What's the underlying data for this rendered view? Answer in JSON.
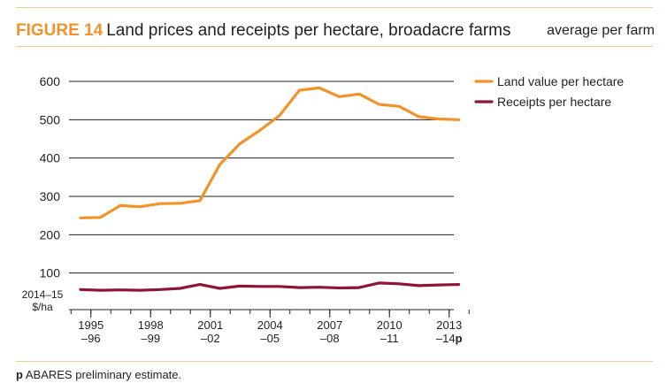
{
  "figure": {
    "label": "FIGURE 14",
    "title": "Land prices and receipts per hectare, broadacre farms",
    "subtitle": "average per farm"
  },
  "footnote": {
    "marker": "p",
    "text": "ABARES preliminary estimate."
  },
  "chart_data": {
    "type": "line",
    "title": "Land prices and receipts per hectare, broadacre farms",
    "subtitle": "average per farm",
    "ylabel_line1": "2014–15",
    "ylabel_line2": "$/ha",
    "ylim": [
      0,
      600
    ],
    "yticks": [
      100,
      200,
      300,
      400,
      500,
      600
    ],
    "grid": true,
    "legend_position": "top-right",
    "x": [
      "1994–95",
      "1995–96",
      "1996–97",
      "1997–98",
      "1998–99",
      "1999–00",
      "2000–01",
      "2001–02",
      "2002–03",
      "2003–04",
      "2004–05",
      "2005–06",
      "2006–07",
      "2007–08",
      "2008–09",
      "2009–10",
      "2010–11",
      "2011–12",
      "2012–13",
      "2013–14"
    ],
    "xtick_labels": [
      {
        "line1": "1995",
        "line2": "–96",
        "suffix": ""
      },
      {
        "line1": "1998",
        "line2": "–99",
        "suffix": ""
      },
      {
        "line1": "2001",
        "line2": "–02",
        "suffix": ""
      },
      {
        "line1": "2004",
        "line2": "–05",
        "suffix": ""
      },
      {
        "line1": "2007",
        "line2": "–08",
        "suffix": ""
      },
      {
        "line1": "2010",
        "line2": "–11",
        "suffix": ""
      },
      {
        "line1": "2013",
        "line2": "–14",
        "suffix": "p"
      }
    ],
    "xtick_positions": [
      1,
      4,
      7,
      10,
      13,
      16,
      19
    ],
    "series": [
      {
        "name": "Land value per hectare",
        "color": "#f0932b",
        "values": [
          244,
          245,
          276,
          273,
          281,
          282,
          289,
          383,
          437,
          472,
          511,
          577,
          583,
          560,
          567,
          540,
          535,
          508,
          502,
          500
        ]
      },
      {
        "name": "Receipts per hectare",
        "color": "#8e1538",
        "values": [
          57,
          55,
          56,
          55,
          57,
          60,
          70,
          60,
          66,
          65,
          65,
          62,
          63,
          61,
          62,
          74,
          72,
          67,
          69,
          70
        ]
      }
    ]
  }
}
